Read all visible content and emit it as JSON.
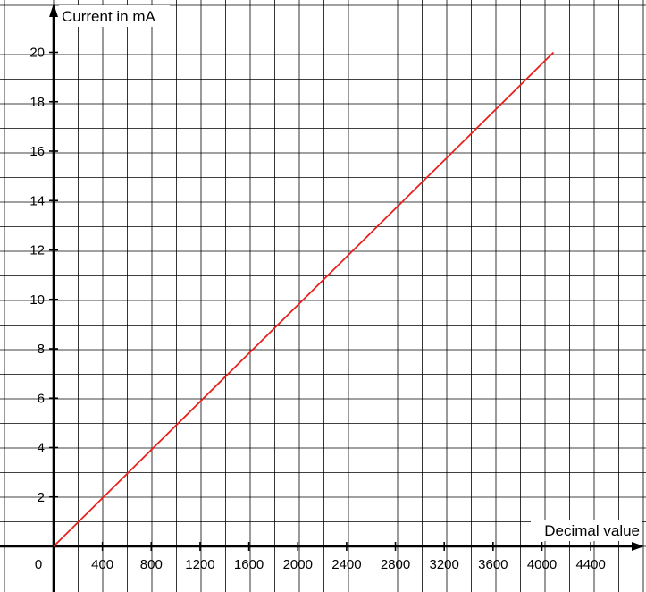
{
  "chart_data": {
    "type": "line",
    "title": "",
    "xlabel": "Decimal value",
    "ylabel": "Current in mA",
    "xlim": [
      0,
      4400
    ],
    "ylim": [
      0,
      20
    ],
    "grid": true,
    "x_ticks": [
      {
        "value": 0,
        "label": "0"
      },
      {
        "value": 400,
        "label": "400"
      },
      {
        "value": 800,
        "label": "800"
      },
      {
        "value": 1200,
        "label": "1200"
      },
      {
        "value": 1600,
        "label": "1600"
      },
      {
        "value": 2000,
        "label": "2000"
      },
      {
        "value": 2400,
        "label": "2400"
      },
      {
        "value": 2800,
        "label": "2800"
      },
      {
        "value": 3200,
        "label": "3200"
      },
      {
        "value": 3600,
        "label": "3600"
      },
      {
        "value": 4000,
        "label": "4000"
      },
      {
        "value": 4400,
        "label": "4400"
      }
    ],
    "y_ticks": [
      {
        "value": 2,
        "label": "2"
      },
      {
        "value": 4,
        "label": "4"
      },
      {
        "value": 6,
        "label": "6"
      },
      {
        "value": 8,
        "label": "8"
      },
      {
        "value": 10,
        "label": "10"
      },
      {
        "value": 12,
        "label": "12"
      },
      {
        "value": 14,
        "label": "14"
      },
      {
        "value": 16,
        "label": "16"
      },
      {
        "value": 18,
        "label": "18"
      },
      {
        "value": 20,
        "label": "20"
      }
    ],
    "series": [
      {
        "color": "#e8211e",
        "x": [
          0,
          4095
        ],
        "y": [
          0,
          20
        ]
      }
    ]
  }
}
